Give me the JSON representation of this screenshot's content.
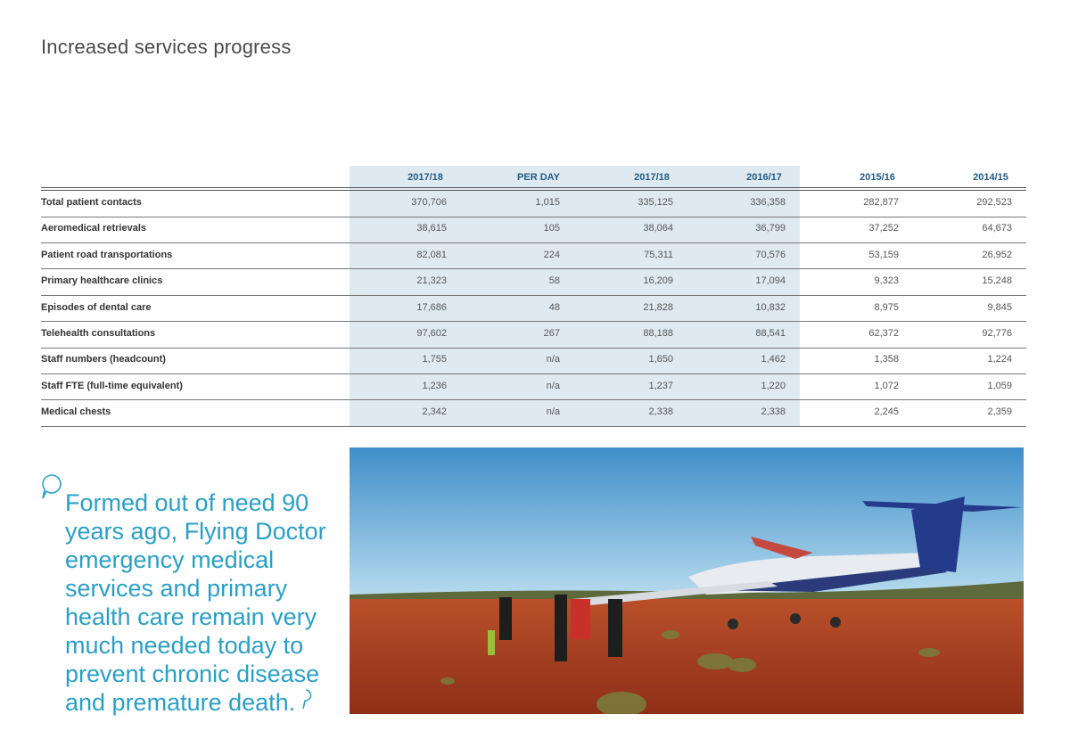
{
  "title": "Increased services progress",
  "table": {
    "headers": [
      "2017/18",
      "PER DAY",
      "2017/18",
      "2016/17",
      "2015/16",
      "2014/15"
    ],
    "rows": [
      [
        "Total patient contacts",
        "370,706",
        "1,015",
        "335,125",
        "336,358",
        "282,877",
        "292,523"
      ],
      [
        "Aeromedical retrievals",
        "38,615",
        "105",
        "38,064",
        "36,799",
        "37,252",
        "64,673"
      ],
      [
        "Patient road transportations",
        "82,081",
        "224",
        "75,311",
        "70,576",
        "53,159",
        "26,952"
      ],
      [
        "Primary healthcare clinics",
        "21,323",
        "58",
        "16,209",
        "17,094",
        "9,323",
        "15,248"
      ],
      [
        "Episodes of dental care",
        "17,686",
        "48",
        "21,828",
        "10,832",
        "8,975",
        "9,845"
      ],
      [
        "Telehealth consultations",
        "97,602",
        "267",
        "88,188",
        "88,541",
        "62,372",
        "92,776"
      ],
      [
        "Staff numbers (headcount)",
        "1,755",
        "n/a",
        "1,650",
        "1,462",
        "1,358",
        "1,224"
      ],
      [
        "Staff FTE (full-time equivalent)",
        "1,236",
        "n/a",
        "1,237",
        "1,220",
        "1,072",
        "1,059"
      ],
      [
        "Medical chests",
        "2,342",
        "n/a",
        "2,338",
        "2,338",
        "2,245",
        "2,359"
      ]
    ]
  },
  "quote": {
    "lines": [
      "Formed out of need 90",
      "years ago, Flying Doctor",
      "emergency medical",
      "services and primary",
      "health care remain very",
      "much needed today to",
      "prevent chronic disease",
      "and premature death."
    ]
  }
}
